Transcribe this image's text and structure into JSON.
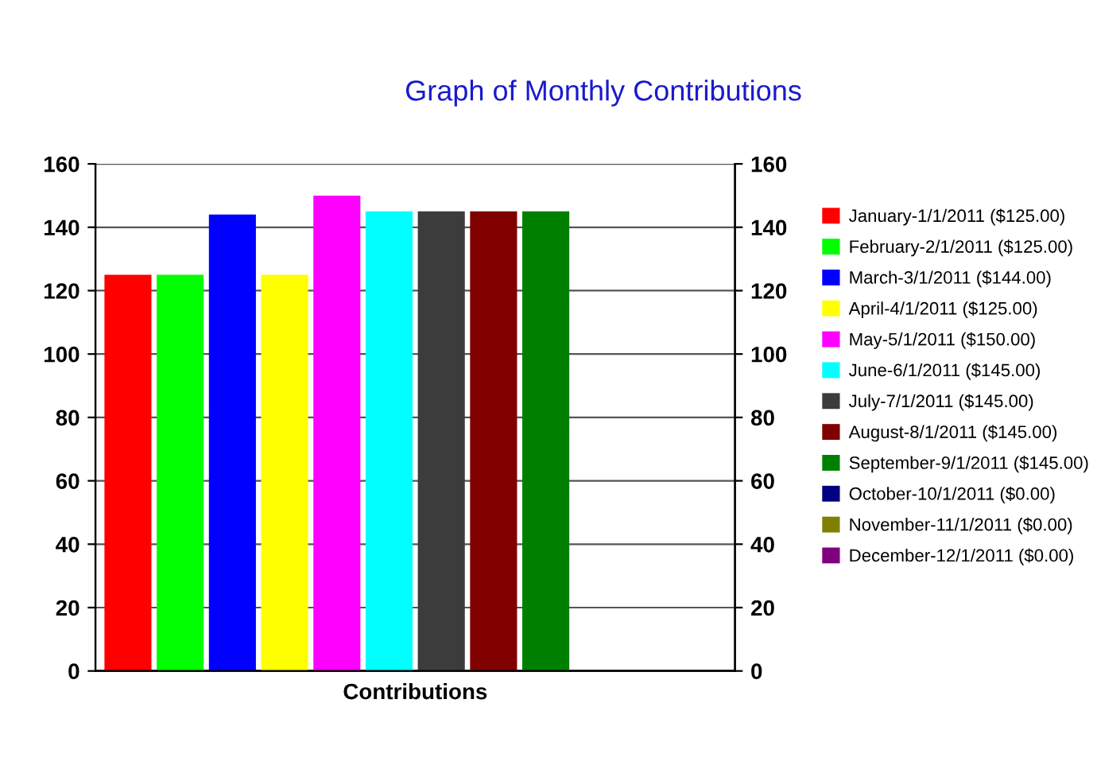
{
  "chart_data": {
    "type": "bar",
    "title": "Graph of Monthly Contributions",
    "xlabel": "Contributions",
    "categories": [
      null
    ],
    "series": [
      {
        "name": "January-1/1/2011 ($125.00)",
        "color": "#ff0000",
        "values": [
          125
        ]
      },
      {
        "name": "February-2/1/2011 ($125.00)",
        "color": "#00ff00",
        "values": [
          125
        ]
      },
      {
        "name": "March-3/1/2011 ($144.00)",
        "color": "#0000ff",
        "values": [
          144
        ]
      },
      {
        "name": "April-4/1/2011 ($125.00)",
        "color": "#ffff00",
        "values": [
          125
        ]
      },
      {
        "name": "May-5/1/2011 ($150.00)",
        "color": "#ff00ff",
        "values": [
          150
        ]
      },
      {
        "name": "June-6/1/2011 ($145.00)",
        "color": "#00ffff",
        "values": [
          145
        ]
      },
      {
        "name": "July-7/1/2011 ($145.00)",
        "color": "#3c3c3c",
        "values": [
          145
        ]
      },
      {
        "name": "August-8/1/2011 ($145.00)",
        "color": "#800000",
        "values": [
          145
        ]
      },
      {
        "name": "September-9/1/2011 ($145.00)",
        "color": "#008000",
        "values": [
          145
        ]
      },
      {
        "name": "October-10/1/2011 ($0.00)",
        "color": "#000080",
        "values": [
          0
        ]
      },
      {
        "name": "November-11/1/2011 ($0.00)",
        "color": "#808000",
        "values": [
          0
        ]
      },
      {
        "name": "December-12/1/2011 ($0.00)",
        "color": "#800080",
        "values": [
          0
        ]
      }
    ],
    "ylim": [
      0,
      160
    ],
    "yticks": [
      0,
      20,
      40,
      60,
      80,
      100,
      120,
      140,
      160
    ],
    "y2lim": [
      0,
      160
    ],
    "y2ticks": [
      0,
      20,
      40,
      60,
      80,
      100,
      120,
      140,
      160
    ],
    "grid": "y",
    "legend": "right"
  }
}
